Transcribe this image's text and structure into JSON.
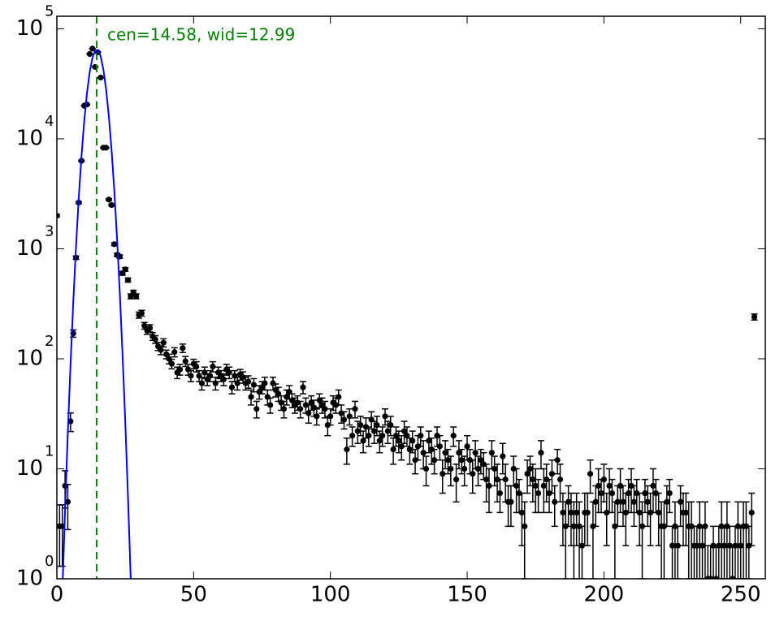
{
  "chart_data": {
    "type": "scatter",
    "yscale": "log",
    "xlim": [
      0,
      259
    ],
    "ylim": [
      1,
      130000
    ],
    "xticks": [
      0,
      50,
      100,
      150,
      200,
      250
    ],
    "yticks": [
      {
        "value": 1,
        "label": "10",
        "exponent": "0"
      },
      {
        "value": 10,
        "label": "10",
        "exponent": "1"
      },
      {
        "value": 100,
        "label": "10",
        "exponent": "2"
      },
      {
        "value": 1000,
        "label": "10",
        "exponent": "3"
      },
      {
        "value": 10000,
        "label": "10",
        "exponent": "4"
      },
      {
        "value": 100000,
        "label": "10",
        "exponent": "5"
      }
    ],
    "annotation": "cen=14.58, wid=12.99",
    "center": 14.58,
    "center_color": "#008000",
    "series": [
      {
        "type": "errorbar",
        "color": "#000000",
        "x": [
          0,
          1,
          2,
          3,
          4,
          5,
          6,
          7,
          8,
          9,
          10,
          11,
          12,
          13,
          14,
          15,
          16,
          17,
          18,
          19,
          20,
          21,
          22,
          23,
          24,
          25,
          26,
          27,
          28,
          29,
          30,
          31,
          32,
          33,
          34,
          35,
          36,
          37,
          38,
          39,
          40,
          41,
          42,
          43,
          44,
          45,
          46,
          47,
          48,
          49,
          50,
          51,
          52,
          53,
          54,
          55,
          56,
          57,
          58,
          59,
          60,
          61,
          62,
          63,
          64,
          65,
          66,
          67,
          68,
          69,
          70,
          71,
          72,
          73,
          74,
          75,
          76,
          77,
          78,
          79,
          80,
          81,
          82,
          83,
          84,
          85,
          86,
          87,
          88,
          89,
          90,
          91,
          92,
          93,
          94,
          95,
          96,
          97,
          98,
          99,
          100,
          101,
          102,
          103,
          104,
          105,
          106,
          107,
          108,
          109,
          110,
          111,
          112,
          113,
          114,
          115,
          116,
          117,
          118,
          119,
          120,
          121,
          122,
          123,
          124,
          125,
          126,
          127,
          128,
          129,
          130,
          131,
          132,
          133,
          134,
          135,
          136,
          137,
          138,
          139,
          140,
          141,
          142,
          143,
          144,
          145,
          146,
          147,
          148,
          149,
          150,
          151,
          152,
          153,
          154,
          155,
          156,
          157,
          158,
          159,
          160,
          161,
          162,
          163,
          164,
          165,
          166,
          167,
          168,
          169,
          170,
          171,
          172,
          173,
          174,
          175,
          176,
          177,
          178,
          179,
          180,
          181,
          182,
          183,
          184,
          185,
          186,
          187,
          188,
          189,
          190,
          191,
          192,
          193,
          194,
          195,
          196,
          197,
          198,
          199,
          200,
          201,
          202,
          203,
          204,
          205,
          206,
          207,
          208,
          209,
          210,
          211,
          212,
          213,
          214,
          215,
          216,
          217,
          218,
          219,
          220,
          221,
          222,
          223,
          224,
          225,
          226,
          227,
          228,
          229,
          230,
          231,
          232,
          233,
          234,
          235,
          236,
          237,
          238,
          239,
          240,
          241,
          242,
          243,
          244,
          245,
          246,
          247,
          248,
          249,
          250,
          251,
          252,
          253,
          254,
          255
        ],
        "values": [
          2000,
          3,
          3,
          7,
          5,
          27,
          170,
          830,
          2630,
          6300,
          20000,
          20500,
          59000,
          66000,
          45000,
          61000,
          36000,
          8300,
          8300,
          2800,
          2500,
          1100,
          880,
          850,
          600,
          650,
          520,
          370,
          400,
          370,
          250,
          260,
          200,
          180,
          190,
          160,
          150,
          130,
          120,
          140,
          110,
          100,
          90,
          115,
          75,
          80,
          125,
          95,
          80,
          70,
          90,
          85,
          70,
          60,
          75,
          65,
          70,
          85,
          60,
          75,
          70,
          65,
          80,
          75,
          55,
          70,
          60,
          72,
          68,
          60,
          62,
          45,
          58,
          35,
          50,
          55,
          60,
          45,
          38,
          60,
          52,
          48,
          40,
          35,
          45,
          50,
          42,
          38,
          40,
          35,
          55,
          38,
          32,
          40,
          36,
          30,
          42,
          38,
          35,
          25,
          30,
          40,
          38,
          45,
          32,
          28,
          15,
          30,
          20,
          35,
          22,
          25,
          18,
          24,
          20,
          28,
          22,
          25,
          18,
          20,
          30,
          22,
          25,
          15,
          20,
          18,
          16,
          22,
          20,
          15,
          18,
          12,
          16,
          20,
          14,
          10,
          18,
          15,
          12,
          20,
          16,
          9,
          14,
          12,
          10,
          20,
          8,
          14,
          12,
          10,
          16,
          12,
          9,
          14,
          10,
          12,
          11,
          8,
          7,
          14,
          10,
          8,
          6,
          13,
          8,
          5,
          5,
          10,
          7,
          6,
          4,
          3,
          9,
          10,
          8,
          7,
          6,
          14,
          7,
          8,
          6,
          9,
          5,
          12,
          8,
          4,
          3,
          5,
          4,
          3,
          4,
          3,
          2,
          4,
          4,
          9,
          3,
          5,
          7,
          6,
          8,
          4,
          7,
          6,
          3,
          5,
          7,
          5,
          4,
          6,
          7,
          5,
          6,
          4,
          3,
          6,
          5,
          4,
          7,
          6,
          4,
          3,
          3,
          5,
          6,
          2,
          3,
          2,
          5,
          4,
          4,
          3,
          3,
          2,
          2,
          3,
          2,
          3,
          1,
          1,
          2,
          1,
          2,
          3,
          2,
          3,
          2,
          1,
          2,
          3,
          2,
          3,
          3,
          2,
          4,
          240
        ],
        "errors": [
          45,
          1.7,
          1.7,
          2.6,
          2.2,
          5.2,
          13,
          29,
          51,
          79,
          141,
          143,
          243,
          257,
          212,
          247,
          190,
          91,
          91,
          53,
          50,
          33,
          30,
          29,
          24,
          25,
          23,
          19,
          20,
          19,
          16,
          16,
          14,
          13,
          14,
          13,
          12,
          11,
          11,
          12,
          10,
          10,
          9,
          11,
          9,
          9,
          11,
          10,
          9,
          8,
          9,
          9,
          8,
          8,
          9,
          8,
          8,
          9,
          8,
          9,
          8,
          8,
          9,
          9,
          7,
          8,
          8,
          8,
          8,
          8,
          8,
          7,
          8,
          6,
          7,
          7,
          8,
          7,
          6,
          8,
          7,
          7,
          6,
          6,
          7,
          7,
          6,
          6,
          6,
          6,
          7,
          6,
          6,
          6,
          6,
          5,
          6,
          6,
          6,
          5,
          5,
          6,
          6,
          7,
          6,
          5,
          4,
          5,
          4,
          6,
          5,
          5,
          4,
          5,
          4,
          5,
          5,
          5,
          4,
          4,
          5,
          5,
          5,
          4,
          4,
          4,
          4,
          5,
          4,
          4,
          4,
          3,
          4,
          4,
          4,
          3,
          4,
          4,
          3,
          4,
          4,
          3,
          4,
          3,
          3,
          4,
          3,
          4,
          3,
          3,
          4,
          3,
          3,
          4,
          3,
          3,
          3,
          3,
          3,
          4,
          3,
          3,
          2,
          4,
          3,
          2,
          2,
          3,
          3,
          2,
          2,
          2,
          3,
          3,
          3,
          3,
          2,
          4,
          3,
          3,
          2,
          3,
          2,
          3,
          3,
          2,
          2,
          2,
          2,
          2,
          2,
          2,
          1,
          2,
          2,
          3,
          2,
          2,
          3,
          2,
          3,
          2,
          3,
          2,
          2,
          2,
          3,
          2,
          2,
          2,
          3,
          2,
          2,
          2,
          2,
          2,
          2,
          2,
          3,
          2,
          2,
          2,
          2,
          2,
          2,
          1,
          2,
          1,
          2,
          2,
          2,
          2,
          2,
          1,
          1,
          2,
          1,
          2,
          1,
          1,
          1,
          1,
          1,
          2,
          1,
          2,
          1,
          1,
          1,
          2,
          1,
          2,
          2,
          1,
          2,
          15
        ]
      },
      {
        "type": "line",
        "color": "#0000ff",
        "x": [
          2,
          3,
          4,
          5,
          6,
          7,
          8,
          9,
          10,
          11,
          12,
          13,
          14,
          15,
          16,
          17,
          18,
          19,
          20,
          21,
          22,
          23,
          24,
          25,
          26,
          27
        ],
        "values": [
          0.75,
          4.3,
          21,
          89,
          328,
          1045,
          2900,
          6920,
          14400,
          25900,
          40300,
          54300,
          63400,
          64200,
          56200,
          42700,
          28100,
          16000,
          7890,
          3370,
          1240,
          399,
          111,
          27,
          5.5,
          1.0
        ]
      }
    ]
  }
}
